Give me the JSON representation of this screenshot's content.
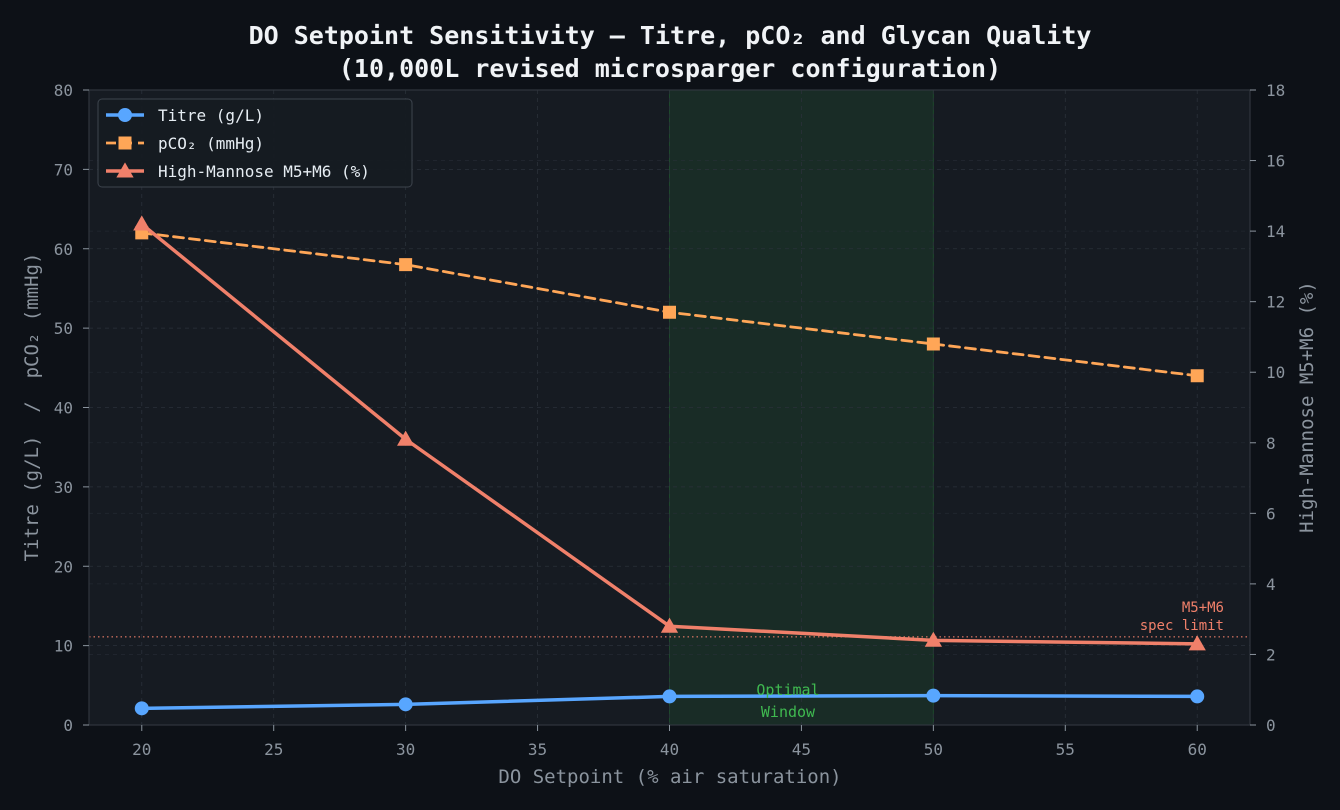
{
  "chart_data": {
    "type": "line",
    "title_line1": "DO Setpoint Sensitivity — Titre, pCO₂ and Glycan Quality",
    "title_line2": "(10,000L revised microsparger configuration)",
    "xlabel": "DO Setpoint (% air saturation)",
    "ylabel_left": "Titre (g/L)  /  pCO₂ (mmHg)",
    "ylabel_right": "High-Mannose M5+M6 (%)",
    "xlim": [
      18,
      62
    ],
    "ylim_left": [
      0,
      80
    ],
    "ylim_right": [
      0,
      18
    ],
    "x_ticks": [
      20,
      25,
      30,
      35,
      40,
      45,
      50,
      55,
      60
    ],
    "y_ticks_left": [
      0,
      10,
      20,
      30,
      40,
      50,
      60,
      70,
      80
    ],
    "y_ticks_right": [
      0,
      2,
      4,
      6,
      8,
      10,
      12,
      14,
      16,
      18
    ],
    "grid": true,
    "legend_position": "top-left",
    "x": [
      20,
      30,
      40,
      50,
      60
    ],
    "series": [
      {
        "name": "Titre (g/L)",
        "axis": "left",
        "values": [
          2.1,
          2.6,
          3.6,
          3.7,
          3.6
        ],
        "color": "#58a6ff",
        "style": "solid",
        "marker": "circle"
      },
      {
        "name": "pCO₂ (mmHg)",
        "axis": "left",
        "values": [
          62,
          58,
          52,
          48,
          44
        ],
        "color": "#ffa657",
        "style": "dashed",
        "marker": "square"
      },
      {
        "name": "High-Mannose M5+M6 (%)",
        "axis": "right",
        "values": [
          14.2,
          8.1,
          2.8,
          2.4,
          2.3
        ],
        "color": "#f0806a",
        "style": "solid",
        "marker": "triangle"
      }
    ],
    "optimal_window": {
      "x_range": [
        40,
        50
      ],
      "label_line1": "Optimal",
      "label_line2": "Window",
      "color": "#2ea043"
    },
    "spec_limit": {
      "axis": "right",
      "value": 2.5,
      "label_line1": "M5+M6",
      "label_line2": "spec limit",
      "color": "#f0806a"
    }
  }
}
